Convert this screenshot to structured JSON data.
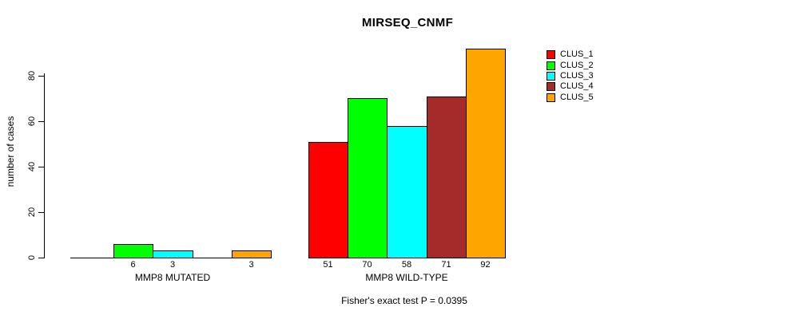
{
  "title": "MIRSEQ_CNMF",
  "ylabel": "number of cases",
  "annotation": "Fisher's exact test P = 0.0395",
  "legend": {
    "items": [
      {
        "label": "CLUS_1",
        "color": "#FF0000"
      },
      {
        "label": "CLUS_2",
        "color": "#00FF00"
      },
      {
        "label": "CLUS_3",
        "color": "#00FFFF"
      },
      {
        "label": "CLUS_4",
        "color": "#A52A2A"
      },
      {
        "label": "CLUS_5",
        "color": "#FFA500"
      }
    ]
  },
  "chart_data": {
    "type": "bar",
    "title": "MIRSEQ_CNMF",
    "xlabel": "",
    "ylabel": "number of cases",
    "categories": [
      "MMP8 MUTATED",
      "MMP8 WILD-TYPE"
    ],
    "series": [
      {
        "name": "CLUS_1",
        "color": "#FF0000",
        "values": [
          0,
          51
        ]
      },
      {
        "name": "CLUS_2",
        "color": "#00FF00",
        "values": [
          6,
          70
        ]
      },
      {
        "name": "CLUS_3",
        "color": "#00FFFF",
        "values": [
          3,
          58
        ]
      },
      {
        "name": "CLUS_4",
        "color": "#A52A2A",
        "values": [
          0,
          71
        ]
      },
      {
        "name": "CLUS_5",
        "color": "#FFA500",
        "values": [
          3,
          92
        ]
      }
    ],
    "yticks": [
      0,
      20,
      40,
      60,
      80
    ],
    "ylim": [
      0,
      92
    ],
    "grid": false,
    "bar_value_labels_shown": true,
    "zero_bars_unlabeled": true,
    "legend_position": "top-right",
    "annotation": "Fisher's exact test P = 0.0395"
  }
}
